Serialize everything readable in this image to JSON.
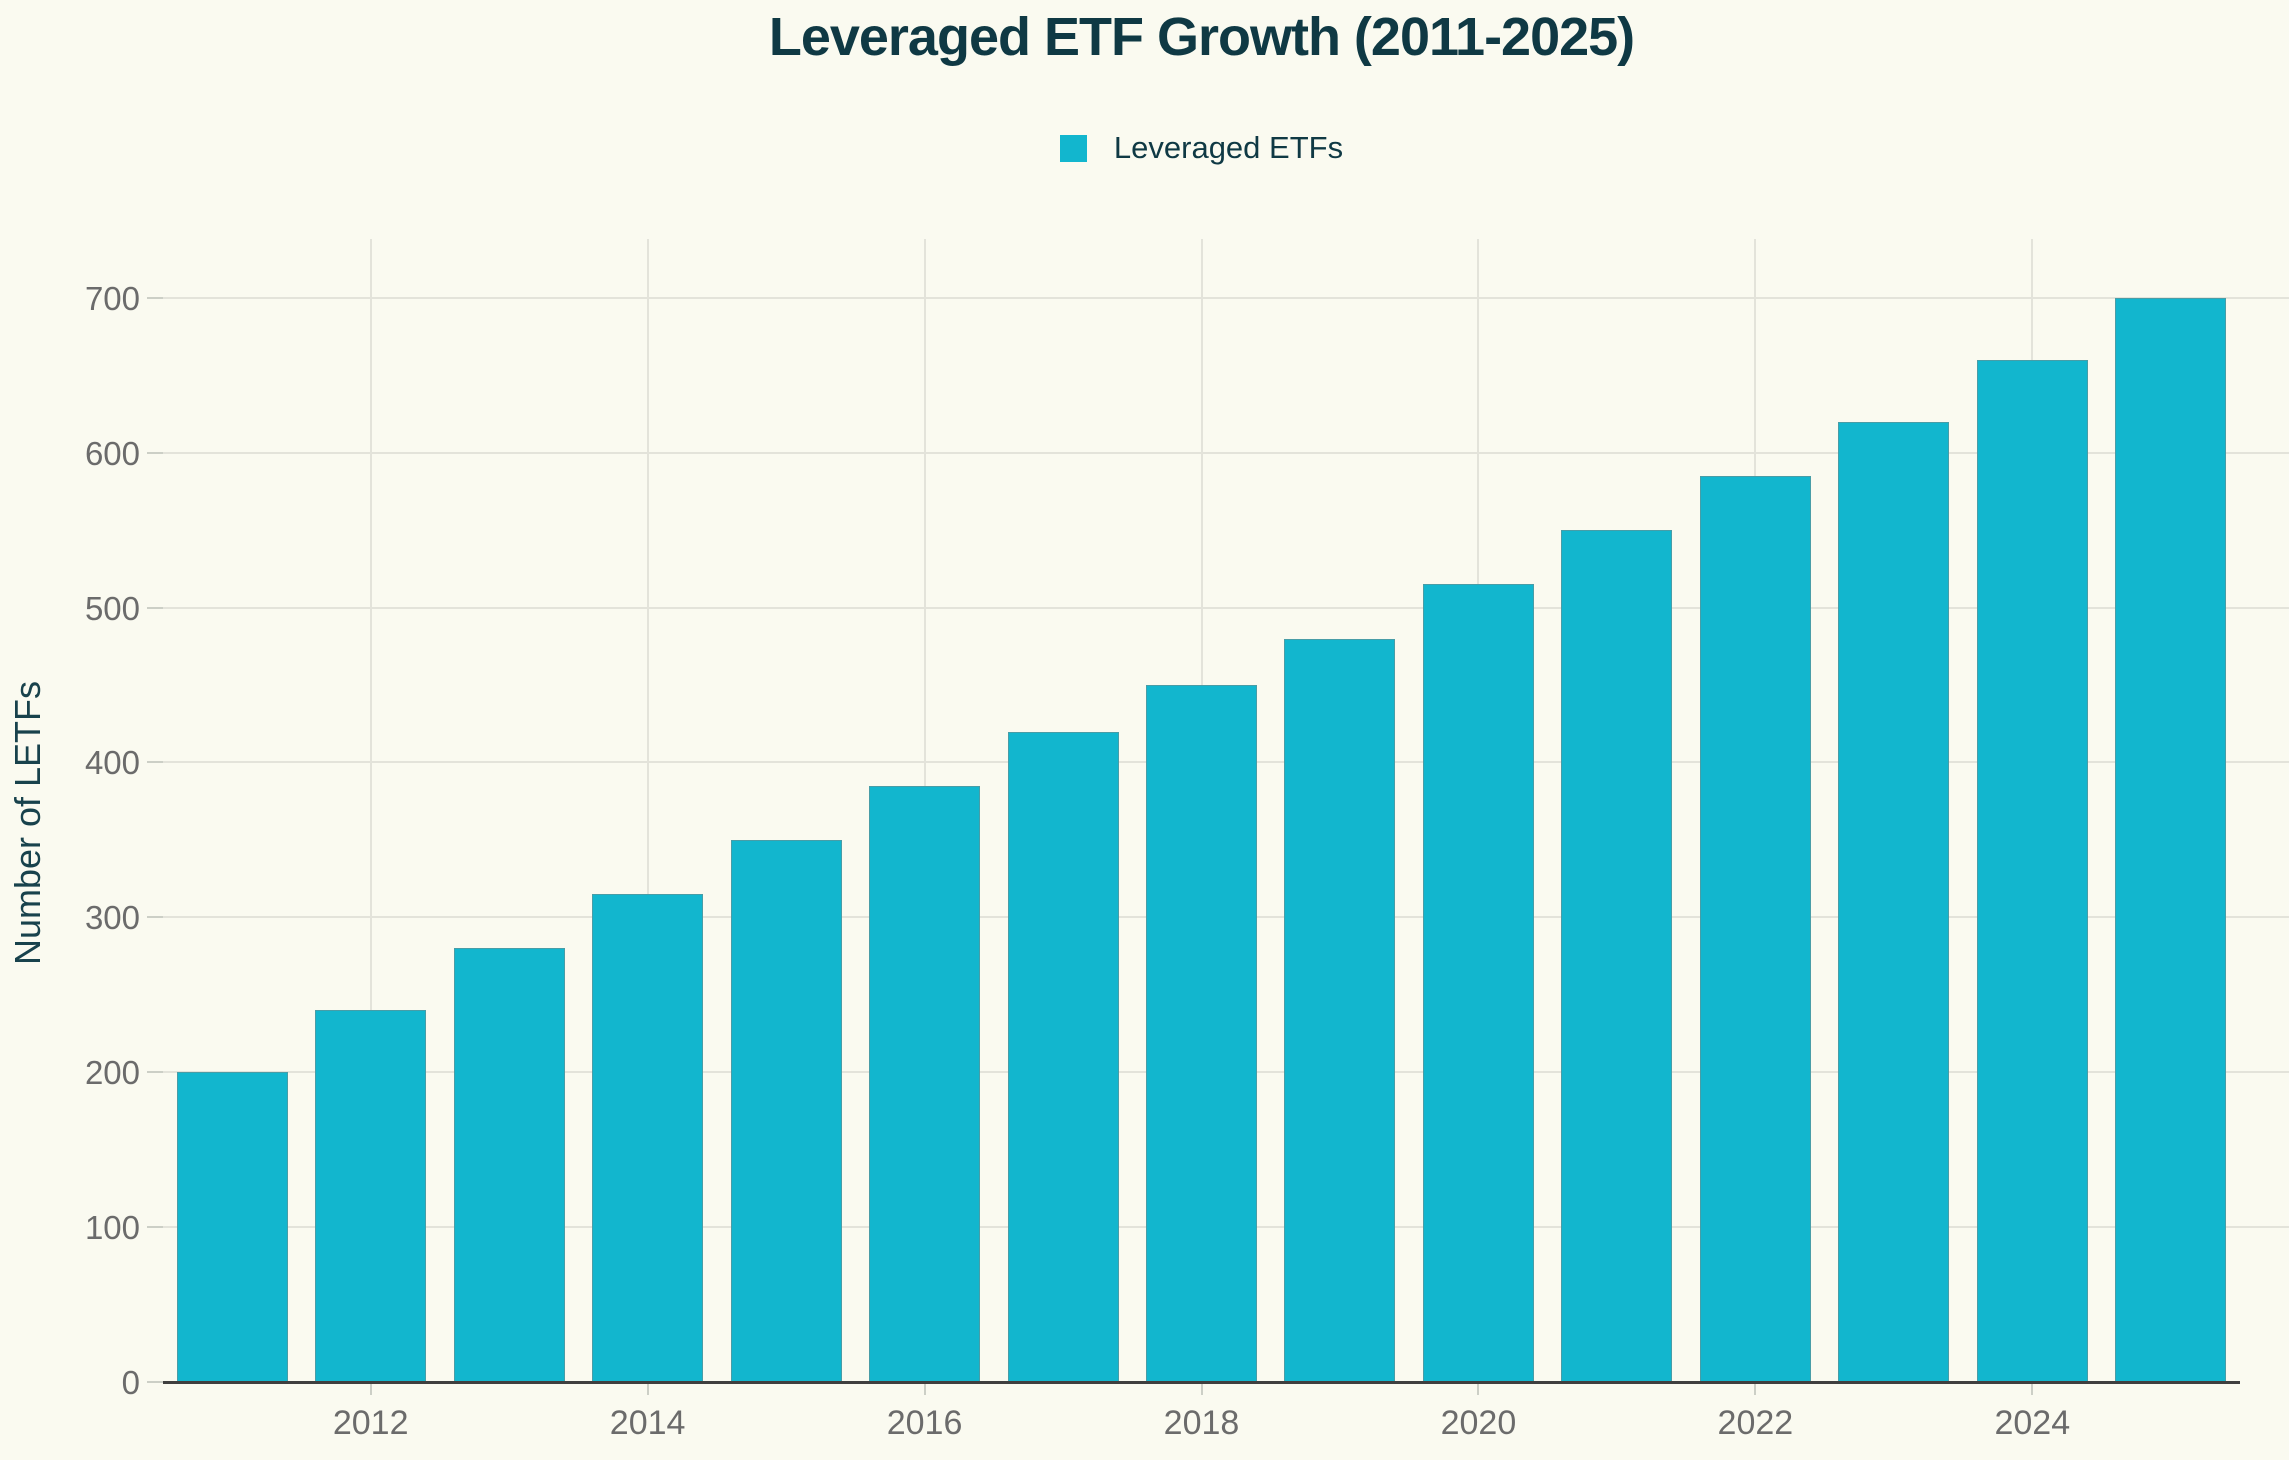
{
  "title": "Leveraged ETF Growth (2011-2025)",
  "legend": {
    "label": "Leveraged ETFs",
    "swatch_color": "#12b6ce"
  },
  "y_axis_title": "Number of LETFs",
  "chart_data": {
    "type": "bar",
    "title": "Leveraged ETF Growth (2011-2025)",
    "series_name": "Leveraged ETFs",
    "categories": [
      "2011",
      "2012",
      "2013",
      "2014",
      "2015",
      "2016",
      "2017",
      "2018",
      "2019",
      "2020",
      "2021",
      "2022",
      "2023",
      "2024",
      "2025"
    ],
    "values": [
      200,
      240,
      280,
      315,
      350,
      385,
      420,
      450,
      480,
      515,
      550,
      585,
      620,
      660,
      700
    ],
    "xlabel": "",
    "ylabel": "Number of LETFs",
    "ylim": [
      0,
      738
    ],
    "yticks": [
      0,
      100,
      200,
      300,
      400,
      500,
      600,
      700
    ],
    "xticks_shown": [
      "2012",
      "2014",
      "2016",
      "2018",
      "2020",
      "2022",
      "2024"
    ],
    "grid": true,
    "legend_position": "top-center",
    "colors": {
      "bar": "#12b6ce",
      "background": "#fafaf0",
      "grid": "#e3e3da",
      "axis_line": "#3f3f3f",
      "tick_label": "#6b6b6b",
      "tick_mark": "#cccfc6",
      "title": "#0f3944",
      "axis_title": "#18424c"
    }
  }
}
